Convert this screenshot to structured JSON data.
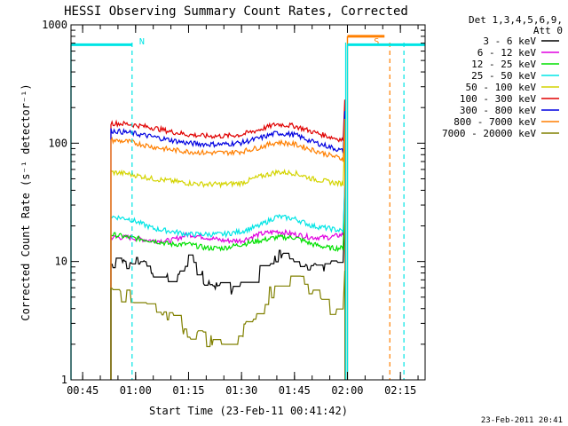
{
  "chart_data": {
    "type": "line",
    "title": "HESSI Observing Summary Count Rates, Corrected",
    "xlabel": "Start Time (23-Feb-11 00:41:42)",
    "ylabel": "Corrected Count Rate (s⁻¹ detector⁻¹)",
    "x_scale": "time",
    "y_scale": "log",
    "xlim": [
      "00:41:42",
      "02:22:00"
    ],
    "ylim": [
      1,
      1000
    ],
    "x_ticks": [
      "00:45",
      "01:00",
      "01:15",
      "01:30",
      "01:45",
      "02:00",
      "02:15"
    ],
    "y_ticks": [
      "1",
      "10",
      "100",
      "1000"
    ],
    "legend": {
      "placement": "right",
      "header": [
        "Det 1,3,4,5,6,9,",
        "Att 0"
      ]
    },
    "flags": [
      {
        "label": "N",
        "color": "#00e5e5",
        "x_start": "00:41:42",
        "x_end": "00:59:00",
        "level": 680
      },
      {
        "label": "S",
        "color": "#ff7f00",
        "x_start": "02:00:00",
        "x_end": "02:10:30",
        "level": 800
      },
      {
        "label": "",
        "color": "#00e5e5",
        "x_start": "02:00:00",
        "x_end": "02:22:00",
        "level": 680
      }
    ],
    "markers": [
      {
        "time": "00:59:00",
        "color": "#00e5e5",
        "style": "dashed"
      },
      {
        "time": "02:12:00",
        "color": "#ff7f00",
        "style": "dashed"
      },
      {
        "time": "02:16:00",
        "color": "#00e5e5",
        "style": "dashed"
      },
      {
        "time": "01:59:30",
        "color": "#00e5e5",
        "style": "solid"
      }
    ],
    "x": [
      "00:53",
      "00:58",
      "01:05",
      "01:10",
      "01:15",
      "01:20",
      "01:25",
      "01:30",
      "01:35",
      "01:40",
      "01:45",
      "01:50",
      "01:55",
      "01:59"
    ],
    "series": [
      {
        "name": "3 - 6 keV",
        "color": "#000000",
        "values": [
          9.5,
          10,
          8.5,
          7,
          10,
          7,
          6,
          6,
          8,
          11,
          11,
          9,
          9,
          9.5
        ]
      },
      {
        "name": "6 - 12 keV",
        "color": "#e000e0",
        "values": [
          16,
          16,
          15,
          15,
          17,
          16,
          15,
          15,
          17,
          18,
          17,
          16,
          16,
          17
        ]
      },
      {
        "name": "12 - 25 keV",
        "color": "#00e000",
        "values": [
          17,
          16,
          15,
          14,
          14,
          13,
          13,
          14,
          15,
          16,
          16,
          14,
          13,
          13
        ]
      },
      {
        "name": "25 - 50 keV",
        "color": "#00e5e5",
        "values": [
          24,
          23,
          19,
          18,
          17,
          17,
          17,
          18,
          20,
          24,
          23,
          20,
          19,
          18
        ]
      },
      {
        "name": "50 - 100 keV",
        "color": "#d4d400",
        "values": [
          57,
          55,
          50,
          48,
          46,
          45,
          45,
          46,
          52,
          57,
          56,
          50,
          47,
          45
        ]
      },
      {
        "name": "100 - 300 keV",
        "color": "#e00000",
        "values": [
          148,
          145,
          135,
          125,
          118,
          115,
          115,
          118,
          130,
          145,
          140,
          125,
          113,
          106
        ]
      },
      {
        "name": "300 - 800 keV",
        "color": "#0000e0",
        "values": [
          128,
          123,
          113,
          106,
          100,
          98,
          98,
          101,
          110,
          122,
          118,
          103,
          93,
          85
        ]
      },
      {
        "name": "800 - 7000 keV",
        "color": "#ff7f00",
        "values": [
          106,
          103,
          93,
          88,
          85,
          83,
          83,
          85,
          92,
          102,
          98,
          88,
          79,
          73
        ]
      },
      {
        "name": "7000 - 20000 keV",
        "color": "#808000",
        "values": [
          5.5,
          5,
          4,
          3.2,
          2.6,
          2.2,
          2.2,
          2.6,
          3.8,
          6.5,
          7.5,
          5.5,
          4,
          3.8
        ]
      }
    ]
  },
  "footer": {
    "date_stamp": "23-Feb-2011 20:41"
  }
}
